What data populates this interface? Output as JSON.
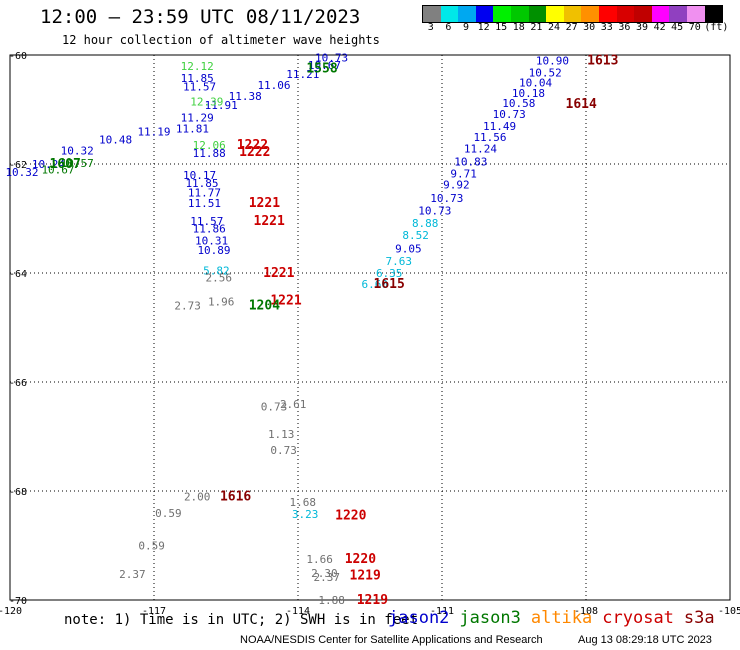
{
  "header": {
    "title": "12:00 – 23:59 UTC 08/11/2023",
    "subtitle": "12 hour collection of altimeter wave heights"
  },
  "colorbar": {
    "colors": [
      "#808080",
      "#00e8e8",
      "#00a8f0",
      "#0000f0",
      "#00f000",
      "#00c800",
      "#009000",
      "#ffff00",
      "#f0c000",
      "#ff9000",
      "#ff0000",
      "#d80000",
      "#c00000",
      "#ff00ff",
      "#9040c0",
      "#f090f0",
      "#000000"
    ],
    "labels": [
      "3",
      "6",
      "9",
      "12",
      "15",
      "18",
      "21",
      "24",
      "27",
      "30",
      "33",
      "36",
      "39",
      "42",
      "45",
      "70",
      "(ft)"
    ]
  },
  "axes": {
    "x_ticks": [
      "-120",
      "-117",
      "-114",
      "-111",
      "-108",
      "-105"
    ],
    "y_ticks": [
      "-60",
      "-62",
      "-64",
      "-66",
      "-68",
      "-70"
    ]
  },
  "satellite_colors": {
    "jason2": "#0000cc",
    "jason3": "#007700",
    "altika": "#ff8800",
    "cryosat": "#cc0000",
    "s3a": "#880000",
    "low": "#707070",
    "cyan": "#00b8d8",
    "lightgreen": "#40d040"
  },
  "observations": [
    {
      "v": "12.12",
      "lon": -116.1,
      "lat": -60.2,
      "c": "lightgreen"
    },
    {
      "v": "11.85",
      "lon": -116.1,
      "lat": -60.42,
      "c": "jason2"
    },
    {
      "v": "11.57",
      "lon": -116.05,
      "lat": -60.58,
      "c": "jason2"
    },
    {
      "v": "10.90",
      "lon": -108.7,
      "lat": -60.1,
      "c": "jason2"
    },
    {
      "v": "10.52",
      "lon": -108.85,
      "lat": -60.32,
      "c": "jason2"
    },
    {
      "v": "10.04",
      "lon": -109.05,
      "lat": -60.5,
      "c": "jason2"
    },
    {
      "v": "10.18",
      "lon": -109.2,
      "lat": -60.7,
      "c": "jason2"
    },
    {
      "v": "10.58",
      "lon": -109.4,
      "lat": -60.88,
      "c": "jason2"
    },
    {
      "v": "10.73",
      "lon": -109.6,
      "lat": -61.08,
      "c": "jason2"
    },
    {
      "v": "11.49",
      "lon": -109.8,
      "lat": -61.3,
      "c": "jason2"
    },
    {
      "v": "11.56",
      "lon": -110.0,
      "lat": -61.5,
      "c": "jason2"
    },
    {
      "v": "11.24",
      "lon": -110.2,
      "lat": -61.72,
      "c": "jason2"
    },
    {
      "v": "10.83",
      "lon": -110.4,
      "lat": -61.95,
      "c": "jason2"
    },
    {
      "v": "9.71",
      "lon": -110.55,
      "lat": -62.17,
      "c": "jason2"
    },
    {
      "v": "9.92",
      "lon": -110.7,
      "lat": -62.38,
      "c": "jason2"
    },
    {
      "v": "10.73",
      "lon": -110.9,
      "lat": -62.62,
      "c": "jason2"
    },
    {
      "v": "10.73",
      "lon": -111.15,
      "lat": -62.85,
      "c": "jason2"
    },
    {
      "v": "8.88",
      "lon": -111.35,
      "lat": -63.08,
      "c": "cyan"
    },
    {
      "v": "8.52",
      "lon": -111.55,
      "lat": -63.3,
      "c": "cyan"
    },
    {
      "v": "9.05",
      "lon": -111.7,
      "lat": -63.55,
      "c": "jason2"
    },
    {
      "v": "7.63",
      "lon": -111.9,
      "lat": -63.78,
      "c": "cyan"
    },
    {
      "v": "6.35",
      "lon": -112.1,
      "lat": -64.0,
      "c": "cyan"
    },
    {
      "v": "6.60",
      "lon": -112.4,
      "lat": -64.2,
      "c": "cyan"
    },
    {
      "v": "10.73",
      "lon": -113.3,
      "lat": -60.05,
      "c": "jason2"
    },
    {
      "v": "10.67",
      "lon": -113.45,
      "lat": -60.18,
      "c": "jason2"
    },
    {
      "v": "11.21",
      "lon": -113.9,
      "lat": -60.35,
      "c": "jason2"
    },
    {
      "v": "11.06",
      "lon": -114.5,
      "lat": -60.55,
      "c": "jason2"
    },
    {
      "v": "11.38",
      "lon": -115.1,
      "lat": -60.75,
      "c": "jason2"
    },
    {
      "v": "11.91",
      "lon": -115.6,
      "lat": -60.92,
      "c": "jason2"
    },
    {
      "v": "12.39",
      "lon": -115.9,
      "lat": -60.85,
      "c": "lightgreen"
    },
    {
      "v": "11.29",
      "lon": -116.1,
      "lat": -61.15,
      "c": "jason2"
    },
    {
      "v": "11.81",
      "lon": -116.2,
      "lat": -61.35,
      "c": "jason2"
    },
    {
      "v": "11.19",
      "lon": -117.0,
      "lat": -61.4,
      "c": "jason2"
    },
    {
      "v": "10.48",
      "lon": -117.8,
      "lat": -61.55,
      "c": "jason2"
    },
    {
      "v": "10.32",
      "lon": -118.6,
      "lat": -61.75,
      "c": "jason2"
    },
    {
      "v": "10.24",
      "lon": -119.2,
      "lat": -62.0,
      "c": "jason2"
    },
    {
      "v": "10.32",
      "lon": -119.75,
      "lat": -62.15,
      "c": "jason2"
    },
    {
      "v": "10.67",
      "lon": -119.0,
      "lat": -62.1,
      "c": "jason3"
    },
    {
      "v": "10.57",
      "lon": -118.6,
      "lat": -61.98,
      "c": "jason3"
    },
    {
      "v": "12.06",
      "lon": -115.85,
      "lat": -61.65,
      "c": "lightgreen"
    },
    {
      "v": "11.88",
      "lon": -115.85,
      "lat": -61.8,
      "c": "jason2"
    },
    {
      "v": "10.17",
      "lon": -116.05,
      "lat": -62.2,
      "c": "jason2"
    },
    {
      "v": "11.85",
      "lon": -116.0,
      "lat": -62.35,
      "c": "jason2"
    },
    {
      "v": "11.77",
      "lon": -115.95,
      "lat": -62.52,
      "c": "jason2"
    },
    {
      "v": "11.51",
      "lon": -115.95,
      "lat": -62.72,
      "c": "jason2"
    },
    {
      "v": "11.57",
      "lon": -115.9,
      "lat": -63.05,
      "c": "jason2"
    },
    {
      "v": "11.86",
      "lon": -115.85,
      "lat": -63.18,
      "c": "jason2"
    },
    {
      "v": "10.31",
      "lon": -115.8,
      "lat": -63.4,
      "c": "jason2"
    },
    {
      "v": "10.89",
      "lon": -115.75,
      "lat": -63.58,
      "c": "jason2"
    },
    {
      "v": "5.82",
      "lon": -115.7,
      "lat": -63.95,
      "c": "cyan"
    },
    {
      "v": "2.56",
      "lon": -115.65,
      "lat": -64.08,
      "c": "low"
    },
    {
      "v": "2.73",
      "lon": -116.3,
      "lat": -64.6,
      "c": "low"
    },
    {
      "v": "1.96",
      "lon": -115.6,
      "lat": -64.52,
      "c": "low"
    },
    {
      "v": "0.73",
      "lon": -114.5,
      "lat": -66.45,
      "c": "low"
    },
    {
      "v": "2.61",
      "lon": -114.1,
      "lat": -66.4,
      "c": "low"
    },
    {
      "v": "1.13",
      "lon": -114.35,
      "lat": -66.95,
      "c": "low"
    },
    {
      "v": "0.73",
      "lon": -114.3,
      "lat": -67.25,
      "c": "low"
    },
    {
      "v": "2.00",
      "lon": -116.1,
      "lat": -68.1,
      "c": "low"
    },
    {
      "v": "0.59",
      "lon": -116.7,
      "lat": -68.4,
      "c": "low"
    },
    {
      "v": "1.68",
      "lon": -113.9,
      "lat": -68.2,
      "c": "low"
    },
    {
      "v": "3.23",
      "lon": -113.85,
      "lat": -68.42,
      "c": "cyan"
    },
    {
      "v": "0.59",
      "lon": -117.05,
      "lat": -69.0,
      "c": "low"
    },
    {
      "v": "2.37",
      "lon": -117.45,
      "lat": -69.52,
      "c": "low"
    },
    {
      "v": "1.66",
      "lon": -113.55,
      "lat": -69.25,
      "c": "low"
    },
    {
      "v": "2.30",
      "lon": -113.45,
      "lat": -69.5,
      "c": "low"
    },
    {
      "v": "2.37",
      "lon": -113.4,
      "lat": -69.58,
      "c": "low"
    },
    {
      "v": "1.88",
      "lon": -113.3,
      "lat": -70.0,
      "c": "low"
    }
  ],
  "times": [
    {
      "t": "1613",
      "lon": -107.65,
      "lat": -60.1,
      "c": "s3a"
    },
    {
      "t": "1614",
      "lon": -108.1,
      "lat": -60.9,
      "c": "s3a"
    },
    {
      "t": "1615",
      "lon": -112.1,
      "lat": -64.2,
      "c": "s3a"
    },
    {
      "t": "1558",
      "lon": -113.5,
      "lat": -60.25,
      "c": "jason3"
    },
    {
      "t": "1607",
      "lon": -118.85,
      "lat": -62.0,
      "c": "jason3"
    },
    {
      "t": "1222",
      "lon": -114.95,
      "lat": -61.65,
      "c": "cryosat"
    },
    {
      "t": "1222",
      "lon": -114.9,
      "lat": -61.78,
      "c": "cryosat"
    },
    {
      "t": "1221",
      "lon": -114.7,
      "lat": -62.72,
      "c": "cryosat"
    },
    {
      "t": "1221",
      "lon": -114.6,
      "lat": -63.05,
      "c": "cryosat"
    },
    {
      "t": "1221",
      "lon": -114.4,
      "lat": -64.0,
      "c": "cryosat"
    },
    {
      "t": "1221",
      "lon": -114.25,
      "lat": -64.5,
      "c": "cryosat"
    },
    {
      "t": "1204",
      "lon": -114.7,
      "lat": -64.6,
      "c": "jason3"
    },
    {
      "t": "1616",
      "lon": -115.3,
      "lat": -68.1,
      "c": "s3a"
    },
    {
      "t": "1220",
      "lon": -112.9,
      "lat": -68.45,
      "c": "cryosat"
    },
    {
      "t": "1220",
      "lon": -112.7,
      "lat": -69.25,
      "c": "cryosat"
    },
    {
      "t": "1219",
      "lon": -112.6,
      "lat": -69.55,
      "c": "cryosat"
    },
    {
      "t": "1219",
      "lon": -112.45,
      "lat": -70.0,
      "c": "cryosat"
    }
  ],
  "footer": {
    "note": "note: 1) Time is in UTC; 2) SWH is in feet",
    "legend": [
      {
        "name": "jason2",
        "color": "#0000cc"
      },
      {
        "name": "jason3",
        "color": "#007700"
      },
      {
        "name": "altika",
        "color": "#ff8800"
      },
      {
        "name": "cryosat",
        "color": "#cc0000"
      },
      {
        "name": "s3a",
        "color": "#880000"
      }
    ],
    "credit": "NOAA/NESDIS Center for Satellite Applications and Research",
    "timestamp": "Aug 13 08:29:18 UTC 2023"
  }
}
